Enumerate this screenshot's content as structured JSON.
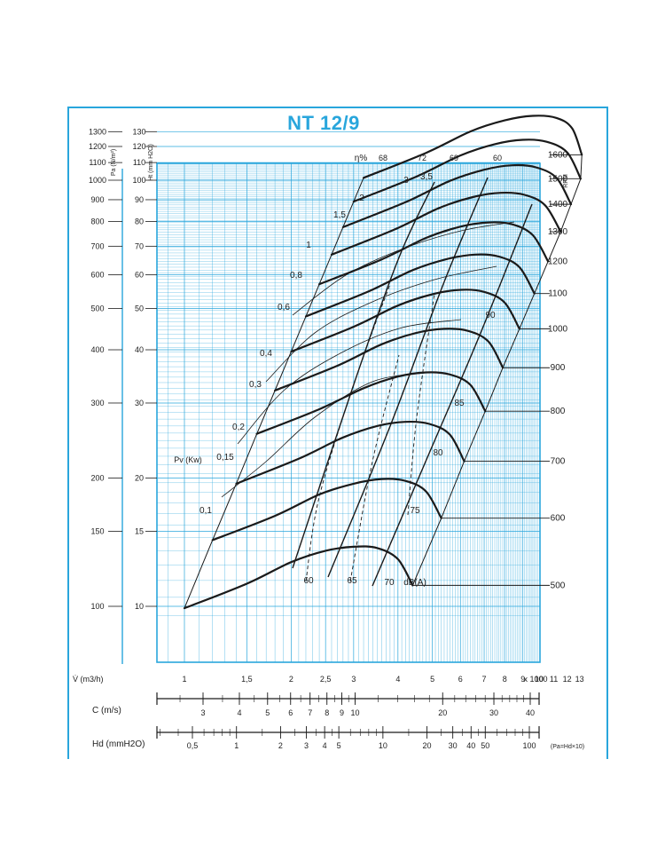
{
  "title": "NT 12/9",
  "colors": {
    "accent": "#29a6dc",
    "ink": "#1a1a1a",
    "paper": "#ffffff"
  },
  "chart_data": {
    "type": "line",
    "title": "NT 12/9",
    "x_axis": {
      "label": "V̇ (m3/h)",
      "scale": "log",
      "range": [
        850,
        13500
      ],
      "ticks": [
        1,
        1.5,
        2,
        2.5,
        3,
        4,
        5,
        6,
        7,
        8,
        9,
        10,
        11,
        12,
        13
      ],
      "tick_labels": [
        "1",
        "1,5",
        "2",
        "2,5",
        "3",
        "4",
        "5",
        "6",
        "7",
        "8",
        "9",
        "10",
        "11",
        "12",
        "13"
      ],
      "multiplier_label": "x 1000"
    },
    "y_axis_left_pa": {
      "label": "Pa (N/m²)",
      "scale": "log",
      "ticks": [
        100,
        150,
        200,
        300,
        400,
        500,
        600,
        700,
        800,
        900,
        1000,
        1100,
        1200,
        1300
      ],
      "tick_labels": [
        "100",
        "150",
        "200",
        "300",
        "400",
        "500",
        "600",
        "700",
        "800",
        "900",
        "1000",
        "1100",
        "1200",
        "1300"
      ]
    },
    "y_axis_left_ht": {
      "label": "Ht (mm H2O)",
      "ticks": [
        10,
        15,
        20,
        30,
        40,
        50,
        60,
        70,
        80,
        90,
        100,
        110,
        120,
        130
      ],
      "tick_labels": [
        "10",
        "15",
        "20",
        "30",
        "40",
        "50",
        "60",
        "70",
        "80",
        "90",
        "100",
        "110",
        "120",
        "130"
      ]
    },
    "y_axis_right_rpm": {
      "label": "RPM",
      "values": [
        500,
        600,
        700,
        800,
        900,
        1000,
        1100,
        1200,
        1300,
        1400,
        1500,
        1600
      ],
      "labels": [
        "500",
        "600",
        "700",
        "800",
        "900",
        "1000",
        "1100",
        "1200",
        "1300",
        "1400",
        "1500",
        "1600"
      ]
    },
    "velocity_scale": {
      "label": "C (m/s)",
      "ticks": [
        3,
        4,
        5,
        6,
        7,
        8,
        9,
        10,
        20,
        30,
        40
      ],
      "tick_labels": [
        "3",
        "4",
        "5",
        "6",
        "7",
        "8",
        "9",
        "10",
        "20",
        "30",
        "40"
      ]
    },
    "dynamic_pressure_scale": {
      "label": "Hd (mmH2O)",
      "ticks": [
        0.5,
        1,
        2,
        3,
        4,
        5,
        10,
        20,
        30,
        40,
        50,
        100
      ],
      "tick_labels": [
        "0,5",
        "1",
        "2",
        "3",
        "4",
        "5",
        "10",
        "20",
        "30",
        "40",
        "50",
        "100"
      ],
      "note": "(Pa=Hd×10)"
    },
    "power_label": "Pv (Kw)",
    "power_values": [
      "0,1",
      "0,15",
      "0,2",
      "0,3",
      "0,4",
      "0,6",
      "0,8",
      "1",
      "1,5",
      "2",
      "3",
      "3,5"
    ],
    "efficiency_label": "η%",
    "efficiency_values": [
      "68",
      "72",
      "69",
      "60"
    ],
    "noise_label": "dB(A)",
    "noise_values": [
      "60",
      "65",
      "70",
      "75",
      "80",
      "85",
      "90"
    ],
    "series": [
      {
        "rpm": 500,
        "x": [
          1000,
          1500,
          2000,
          2500,
          3000,
          3500,
          4000,
          4400
        ],
        "y": [
          99,
          113,
          127,
          135,
          138,
          137,
          129,
          112
        ]
      },
      {
        "rpm": 600,
        "x": [
          1200,
          1800,
          2400,
          3000,
          3600,
          4200,
          4800,
          5300
        ],
        "y": [
          143,
          163,
          183,
          194,
          199,
          197,
          186,
          161
        ]
      },
      {
        "rpm": 700,
        "x": [
          1400,
          2100,
          2800,
          3500,
          4200,
          4900,
          5600,
          6150
        ],
        "y": [
          194,
          222,
          249,
          265,
          271,
          268,
          253,
          219
        ]
      },
      {
        "rpm": 800,
        "x": [
          1600,
          2400,
          3200,
          4000,
          4800,
          5600,
          6400,
          7050
        ],
        "y": [
          254,
          290,
          325,
          346,
          354,
          350,
          331,
          287
        ]
      },
      {
        "rpm": 900,
        "x": [
          1800,
          2700,
          3600,
          4500,
          5400,
          6300,
          7200,
          7900
        ],
        "y": [
          321,
          367,
          412,
          438,
          448,
          443,
          418,
          363
        ]
      },
      {
        "rpm": 1000,
        "x": [
          2000,
          3000,
          4000,
          5000,
          6000,
          7000,
          8000,
          8800
        ],
        "y": [
          396,
          453,
          508,
          540,
          553,
          547,
          516,
          448
        ]
      },
      {
        "rpm": 1100,
        "x": [
          2200,
          3300,
          4400,
          5500,
          6600,
          7700,
          8800,
          9700
        ],
        "y": [
          479,
          548,
          615,
          653,
          669,
          662,
          625,
          542
        ]
      },
      {
        "rpm": 1200,
        "x": [
          2400,
          3600,
          4800,
          6000,
          7200,
          8400,
          9600,
          10600
        ],
        "y": [
          570,
          652,
          732,
          778,
          796,
          788,
          743,
          645
        ]
      },
      {
        "rpm": 1300,
        "x": [
          2600,
          3900,
          5200,
          6500,
          7800,
          9100,
          10400,
          11500
        ],
        "y": [
          669,
          765,
          859,
          913,
          934,
          924,
          873,
          757
        ]
      },
      {
        "rpm": 1400,
        "x": [
          2800,
          4200,
          5600,
          7000,
          8400,
          9800,
          11200,
          12300
        ],
        "y": [
          776,
          888,
          996,
          1058,
          1084,
          1072,
          1012,
          878
        ]
      },
      {
        "rpm": 1500,
        "x": [
          3000,
          4500,
          6000,
          7500,
          9000,
          10500,
          12000,
          13100
        ],
        "y": [
          891,
          1019,
          1143,
          1215,
          1244,
          1231,
          1162,
          1008
        ]
      },
      {
        "rpm": 1600,
        "x": [
          3200,
          4800,
          6400,
          8000,
          9600,
          11200,
          12400,
          13200
        ],
        "y": [
          1013,
          1159,
          1301,
          1382,
          1416,
          1400,
          1322,
          1147
        ]
      }
    ]
  }
}
